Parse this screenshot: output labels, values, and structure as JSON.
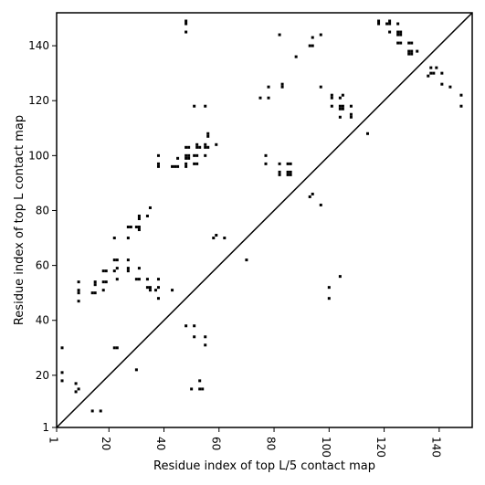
{
  "chart_data": {
    "type": "scatter",
    "title": "",
    "xlabel": "Residue index of top L/5 contact map",
    "ylabel": "Residue index of top L contact map",
    "xlim": [
      1,
      152
    ],
    "ylim": [
      1,
      152
    ],
    "x_ticks": [
      1,
      20,
      40,
      60,
      80,
      100,
      120,
      140
    ],
    "y_ticks": [
      1,
      20,
      40,
      60,
      80,
      100,
      120,
      140
    ],
    "grid": false,
    "legend": "none",
    "marker": "square",
    "marker_color": "#000000",
    "diagonal_line": {
      "from": [
        1,
        1
      ],
      "to": [
        152,
        152
      ],
      "color": "#000000"
    },
    "lower_triangle": [
      [
        3,
        30
      ],
      [
        3,
        21
      ],
      [
        3,
        18
      ],
      [
        8,
        17
      ],
      [
        8,
        14
      ],
      [
        9,
        15
      ],
      [
        14,
        7
      ],
      [
        17,
        7
      ],
      [
        22,
        30
      ],
      [
        23,
        30
      ],
      [
        30,
        22
      ],
      [
        48,
        38
      ],
      [
        51,
        38
      ],
      [
        50,
        15
      ],
      [
        51,
        34
      ],
      [
        53,
        18
      ],
      [
        53,
        15
      ],
      [
        54,
        15
      ],
      [
        55,
        34
      ],
      [
        55,
        31
      ],
      [
        70,
        62
      ],
      [
        100,
        52
      ],
      [
        100,
        48
      ],
      [
        104,
        56
      ],
      [
        114,
        108
      ],
      [
        148,
        122
      ],
      [
        148,
        118
      ],
      [
        141,
        126
      ],
      [
        144,
        125
      ],
      [
        141,
        130
      ],
      [
        139,
        132
      ],
      [
        138,
        130
      ]
    ],
    "upper_triangle": [
      [
        9,
        54
      ],
      [
        9,
        51
      ],
      [
        9,
        50
      ],
      [
        9,
        47
      ],
      [
        15,
        54
      ],
      [
        15,
        53
      ],
      [
        15,
        50
      ],
      [
        14,
        50
      ],
      [
        18,
        58
      ],
      [
        19,
        58
      ],
      [
        18,
        54
      ],
      [
        19,
        54
      ],
      [
        18,
        51
      ],
      [
        22,
        70
      ],
      [
        23,
        62
      ],
      [
        22,
        62
      ],
      [
        23,
        59
      ],
      [
        22,
        58
      ],
      [
        23,
        55
      ],
      [
        27,
        74
      ],
      [
        28,
        74
      ],
      [
        27,
        70
      ],
      [
        27,
        62
      ],
      [
        27,
        59
      ],
      [
        27,
        58
      ],
      [
        31,
        78
      ],
      [
        31,
        77
      ],
      [
        30,
        74
      ],
      [
        31,
        74
      ],
      [
        31,
        73
      ],
      [
        31,
        59
      ],
      [
        30,
        55
      ],
      [
        31,
        55
      ],
      [
        35,
        81
      ],
      [
        34,
        78
      ],
      [
        34,
        55
      ],
      [
        35,
        52
      ],
      [
        34,
        52
      ],
      [
        35,
        51
      ],
      [
        37,
        51
      ],
      [
        38,
        52
      ],
      [
        38,
        55
      ],
      [
        38,
        48
      ],
      [
        38,
        100
      ],
      [
        38,
        97
      ],
      [
        38,
        96
      ],
      [
        43,
        96
      ],
      [
        44,
        96
      ],
      [
        45,
        96
      ],
      [
        45,
        99
      ],
      [
        43,
        51
      ],
      [
        48,
        149
      ],
      [
        48,
        148
      ],
      [
        48,
        145
      ],
      [
        48,
        103
      ],
      [
        49,
        103
      ],
      [
        48,
        100
      ],
      [
        49,
        100
      ],
      [
        48,
        99
      ],
      [
        49,
        99
      ],
      [
        48,
        97
      ],
      [
        48,
        96
      ],
      [
        51,
        118
      ],
      [
        52,
        104
      ],
      [
        52,
        103
      ],
      [
        53,
        103
      ],
      [
        51,
        100
      ],
      [
        52,
        100
      ],
      [
        51,
        97
      ],
      [
        52,
        97
      ],
      [
        55,
        118
      ],
      [
        56,
        108
      ],
      [
        56,
        107
      ],
      [
        55,
        104
      ],
      [
        56,
        103
      ],
      [
        55,
        103
      ],
      [
        55,
        100
      ],
      [
        59,
        104
      ],
      [
        59,
        71
      ],
      [
        58,
        70
      ],
      [
        62,
        70
      ],
      [
        75,
        121
      ],
      [
        78,
        125
      ],
      [
        78,
        121
      ],
      [
        77,
        100
      ],
      [
        77,
        97
      ],
      [
        82,
        144
      ],
      [
        83,
        126
      ],
      [
        83,
        125
      ],
      [
        82,
        97
      ],
      [
        82,
        94
      ],
      [
        82,
        93
      ],
      [
        85,
        97
      ],
      [
        86,
        97
      ],
      [
        85,
        94
      ],
      [
        86,
        94
      ],
      [
        85,
        93
      ],
      [
        86,
        93
      ],
      [
        88,
        136
      ],
      [
        93,
        140
      ],
      [
        94,
        140
      ],
      [
        94,
        143
      ],
      [
        97,
        144
      ],
      [
        97,
        125
      ],
      [
        93,
        85
      ],
      [
        94,
        86
      ],
      [
        97,
        82
      ],
      [
        101,
        122
      ],
      [
        101,
        121
      ],
      [
        101,
        118
      ],
      [
        104,
        121
      ],
      [
        105,
        122
      ],
      [
        104,
        118
      ],
      [
        105,
        118
      ],
      [
        104,
        117
      ],
      [
        105,
        117
      ],
      [
        104,
        114
      ],
      [
        108,
        118
      ],
      [
        108,
        115
      ],
      [
        108,
        114
      ],
      [
        118,
        149
      ],
      [
        118,
        148
      ],
      [
        121,
        148
      ],
      [
        122,
        149
      ],
      [
        122,
        148
      ],
      [
        122,
        145
      ],
      [
        125,
        148
      ],
      [
        125,
        145
      ],
      [
        126,
        145
      ],
      [
        125,
        144
      ],
      [
        126,
        144
      ],
      [
        125,
        141
      ],
      [
        126,
        141
      ],
      [
        129,
        141
      ],
      [
        130,
        141
      ],
      [
        129,
        138
      ],
      [
        130,
        138
      ],
      [
        129,
        137
      ],
      [
        130,
        137
      ],
      [
        132,
        138
      ],
      [
        136,
        129
      ],
      [
        137,
        130
      ],
      [
        137,
        132
      ]
    ]
  }
}
